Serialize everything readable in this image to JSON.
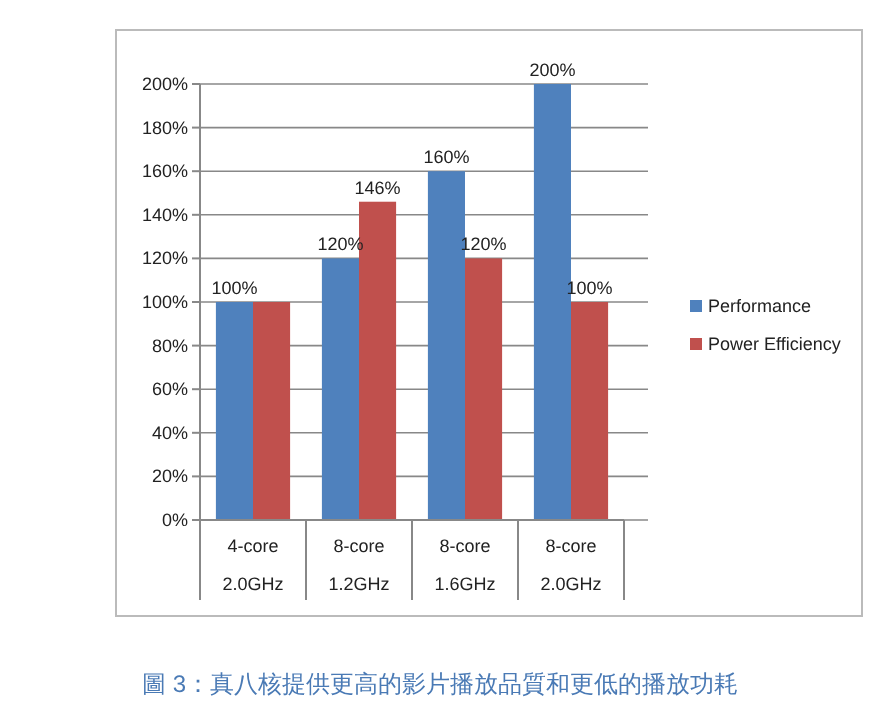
{
  "chart_data": {
    "type": "bar",
    "categories": [
      "4-core\n2.0GHz",
      "8-core\n1.2GHz",
      "8-core\n1.6GHz",
      "8-core\n2.0GHz"
    ],
    "series": [
      {
        "name": "Performance",
        "color": "#4f81bd",
        "values": [
          100,
          120,
          160,
          200
        ],
        "value_labels": [
          "100%",
          "120%",
          "160%",
          "200%"
        ]
      },
      {
        "name": "Power Efficiency",
        "color": "#c0504d",
        "values": [
          100,
          146,
          120,
          100
        ],
        "value_labels": [
          null,
          "146%",
          "120%",
          "100%"
        ]
      }
    ],
    "ylim": [
      0,
      200
    ],
    "yticks": [
      {
        "value": 0,
        "label": "0%"
      },
      {
        "value": 20,
        "label": "20%"
      },
      {
        "value": 40,
        "label": "40%"
      },
      {
        "value": 60,
        "label": "60%"
      },
      {
        "value": 80,
        "label": "80%"
      },
      {
        "value": 100,
        "label": "100%"
      },
      {
        "value": 120,
        "label": "120%"
      },
      {
        "value": 140,
        "label": "140%"
      },
      {
        "value": 160,
        "label": "160%"
      },
      {
        "value": 180,
        "label": "180%"
      },
      {
        "value": 200,
        "label": "200%"
      }
    ],
    "grid": "y",
    "legend": "right",
    "annotations": [
      "圖 3：真八核提供更高的影片播放品質和更低的播放功耗"
    ]
  }
}
